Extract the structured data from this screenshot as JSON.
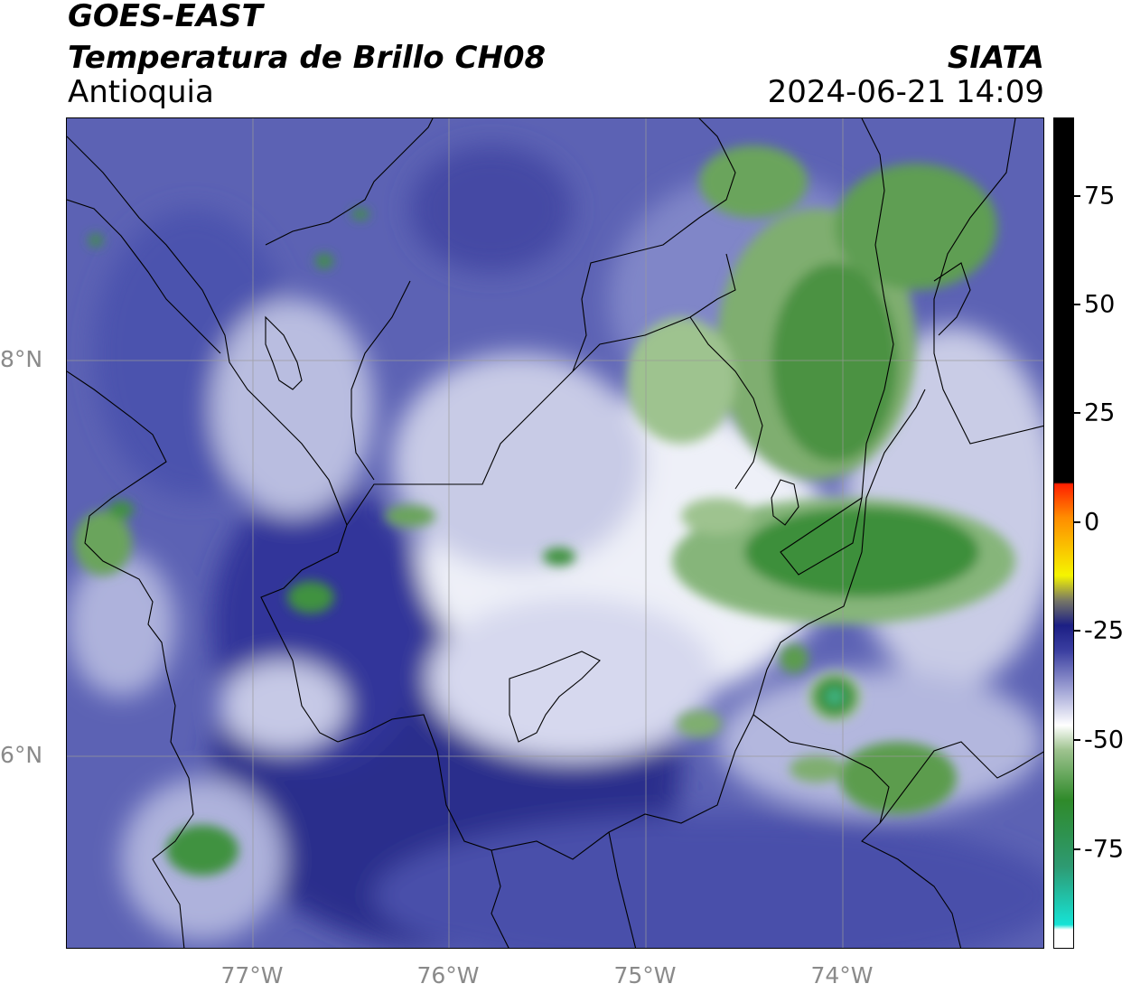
{
  "header": {
    "satellite": "GOES-EAST",
    "product": "Temperatura de Brillo CH08",
    "region": "Antioquia",
    "organization": "SIATA",
    "datetime": "2024-06-21 14:09"
  },
  "map": {
    "lat_ticks": [
      "8°N",
      "6°N"
    ],
    "lon_ticks": [
      "77°W",
      "76°W",
      "75°W",
      "74°W"
    ]
  },
  "colorbar": {
    "tick_labels": [
      "75",
      "50",
      "25",
      "0",
      "-25",
      "-50",
      "-75"
    ],
    "colors": {
      "cyan": "#16e3d6",
      "green": "#2f8a2a",
      "white": "#ffffff",
      "blue_light": "#a6a9d8",
      "blue_dark": "#1c1f84",
      "yellow": "#f5f500",
      "orange": "#ff8c00",
      "red": "#ff2000",
      "black": "#000000"
    }
  }
}
